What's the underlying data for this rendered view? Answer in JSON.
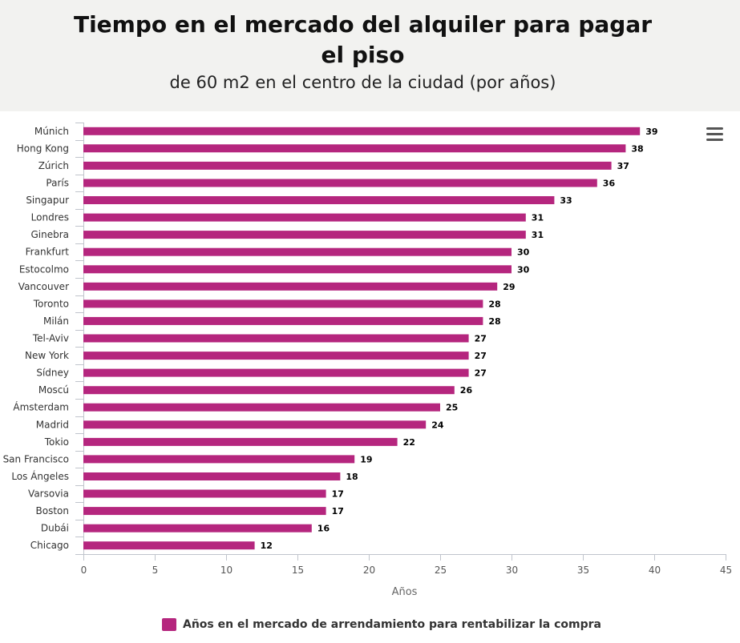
{
  "header": {
    "title": "Tiempo en el mercado del alquiler para pagar el piso",
    "subtitle": "de 60 m2 en el centro de la ciudad (por años)"
  },
  "menu": {
    "icon": "hamburger-menu-icon"
  },
  "chart_data": {
    "type": "bar",
    "orientation": "horizontal",
    "categories": [
      "Múnich",
      "Hong Kong",
      "Zúrich",
      "París",
      "Singapur",
      "Londres",
      "Ginebra",
      "Frankfurt",
      "Estocolmo",
      "Vancouver",
      "Toronto",
      "Milán",
      "Tel-Aviv",
      "New York",
      "Sídney",
      "Moscú",
      "Ámsterdam",
      "Madrid",
      "Tokio",
      "San Francisco",
      "Los Ángeles",
      "Varsovia",
      "Boston",
      "Dubái",
      "Chicago"
    ],
    "series": [
      {
        "name": "Años en el mercado de arrendamiento para rentabilizar la compra",
        "values": [
          39,
          38,
          37,
          36,
          33,
          31,
          31,
          30,
          30,
          29,
          28,
          28,
          27,
          27,
          27,
          26,
          25,
          24,
          22,
          19,
          18,
          17,
          17,
          16,
          12
        ]
      }
    ],
    "xlabel": "Años",
    "ylabel": "",
    "xlim": [
      0,
      45
    ],
    "ticks": [
      0,
      5,
      10,
      15,
      20,
      25,
      30,
      35,
      40,
      45
    ],
    "color": "#b5267e",
    "grid": false,
    "data_labels": true,
    "legend_position": "bottom"
  }
}
